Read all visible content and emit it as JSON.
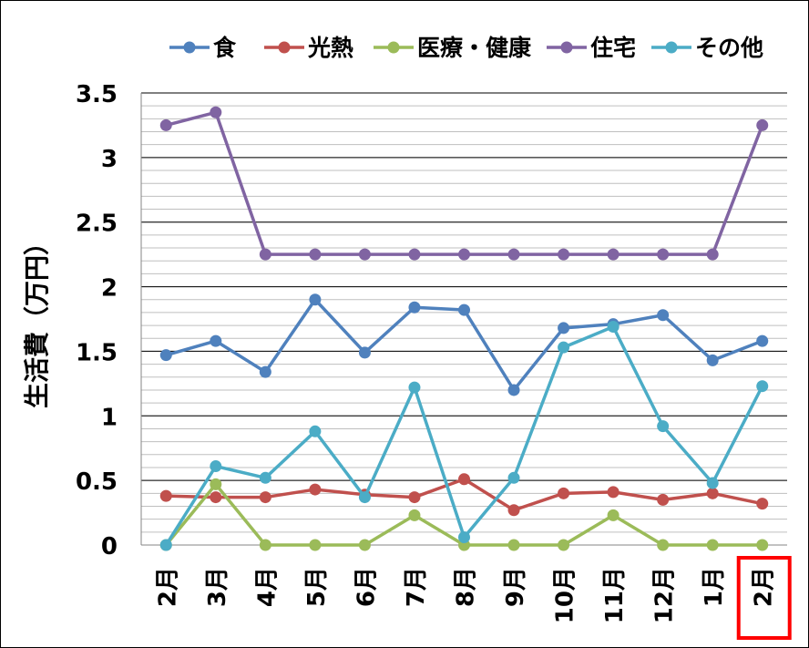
{
  "chart_data": {
    "type": "line",
    "title": "",
    "xlabel": "",
    "ylabel": "生活費（万円）",
    "ylim": [
      0,
      3.5
    ],
    "yticks": [
      "0",
      "0.5",
      "1",
      "1.5",
      "2",
      "2.5",
      "3",
      "3.5"
    ],
    "ytick_values": [
      0,
      0.5,
      1,
      1.5,
      2,
      2.5,
      3,
      3.5
    ],
    "minor_grid_step": 0.1,
    "grid": true,
    "legend_position": "top",
    "categories": [
      "2月",
      "3月",
      "4月",
      "5月",
      "6月",
      "7月",
      "8月",
      "9月",
      "10月",
      "11月",
      "12月",
      "1月",
      "2月"
    ],
    "highlighted_category_index": 12,
    "highlight_color": "#FF0000",
    "series": [
      {
        "name": "食",
        "color": "#4F81BD",
        "values": [
          1.47,
          1.58,
          1.34,
          1.9,
          1.49,
          1.84,
          1.82,
          1.2,
          1.68,
          1.71,
          1.78,
          1.43,
          1.58
        ]
      },
      {
        "name": "光熱",
        "color": "#C0504D",
        "values": [
          0.38,
          0.37,
          0.37,
          0.43,
          0.39,
          0.37,
          0.51,
          0.27,
          0.4,
          0.41,
          0.35,
          0.4,
          0.32
        ]
      },
      {
        "name": "医療・健康",
        "color": "#9BBB59",
        "values": [
          0,
          0.47,
          0,
          0,
          0,
          0.23,
          0,
          0,
          0,
          0.23,
          0,
          0,
          0
        ]
      },
      {
        "name": "住宅",
        "color": "#8064A2",
        "values": [
          3.25,
          3.35,
          2.25,
          2.25,
          2.25,
          2.25,
          2.25,
          2.25,
          2.25,
          2.25,
          2.25,
          2.25,
          3.25
        ]
      },
      {
        "name": "その他",
        "color": "#4BACC6",
        "values": [
          0,
          0.61,
          0.52,
          0.88,
          0.37,
          1.22,
          0.06,
          0.52,
          1.53,
          1.69,
          0.92,
          0.48,
          1.23
        ]
      }
    ]
  }
}
